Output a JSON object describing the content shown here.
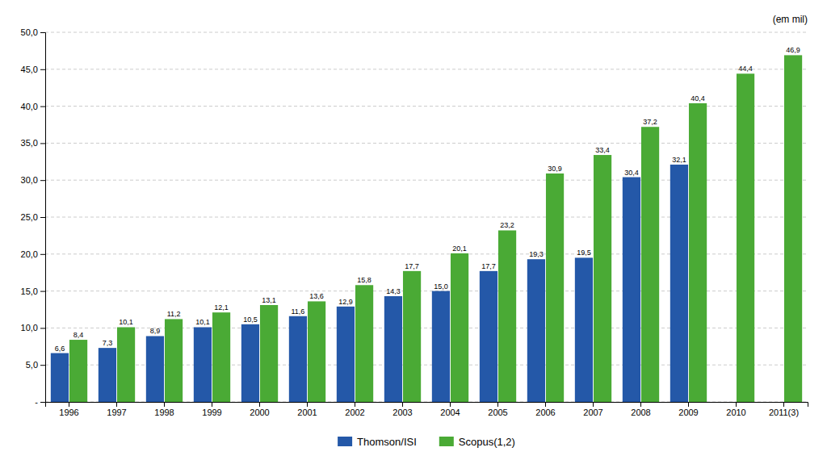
{
  "chart_data": {
    "type": "bar",
    "ylabel": "(em mil)",
    "categories": [
      "1996",
      "1997",
      "1998",
      "1999",
      "2000",
      "2001",
      "2002",
      "2003",
      "2004",
      "2005",
      "2006",
      "2007",
      "2008",
      "2009",
      "2010",
      "2011(3)"
    ],
    "series": [
      {
        "name": "Thomson/ISI",
        "color": "#2458a8",
        "values": [
          6.6,
          7.3,
          8.9,
          10.1,
          10.5,
          11.6,
          12.9,
          14.3,
          15.0,
          17.7,
          19.3,
          19.5,
          30.4,
          32.1,
          0,
          0
        ],
        "value_labels": [
          "6,6",
          "7,3",
          "8,9",
          "10,1",
          "10,5",
          "11,6",
          "12,9",
          "14,3",
          "15,0",
          "17,7",
          "19,3",
          "19,5",
          "30,4",
          "32,1",
          null,
          null
        ]
      },
      {
        "name": "Scopus(1,2)",
        "color": "#4aaa35",
        "values": [
          8.4,
          10.1,
          11.2,
          12.1,
          13.1,
          13.6,
          15.8,
          17.7,
          20.1,
          23.2,
          30.9,
          33.4,
          37.2,
          40.4,
          44.4,
          46.9
        ],
        "value_labels": [
          "8,4",
          "10,1",
          "11,2",
          "12,1",
          "13,1",
          "13,6",
          "15,8",
          "17,7",
          "20,1",
          "23,2",
          "30,9",
          "33,4",
          "37,2",
          "40,4",
          "44,4",
          "46,9"
        ]
      }
    ],
    "ylim": [
      0,
      50
    ],
    "yticks": [
      {
        "value": 0,
        "label": "-"
      },
      {
        "value": 5,
        "label": "5,0"
      },
      {
        "value": 10,
        "label": "10,0"
      },
      {
        "value": 15,
        "label": "15,0"
      },
      {
        "value": 20,
        "label": "20,0"
      },
      {
        "value": 25,
        "label": "25,0"
      },
      {
        "value": 30,
        "label": "30,0"
      },
      {
        "value": 35,
        "label": "35,0"
      },
      {
        "value": 40,
        "label": "40,0"
      },
      {
        "value": 45,
        "label": "45,0"
      },
      {
        "value": 50,
        "label": "50,0"
      }
    ],
    "grid": true,
    "legend": "bottom",
    "data_labels": true
  }
}
